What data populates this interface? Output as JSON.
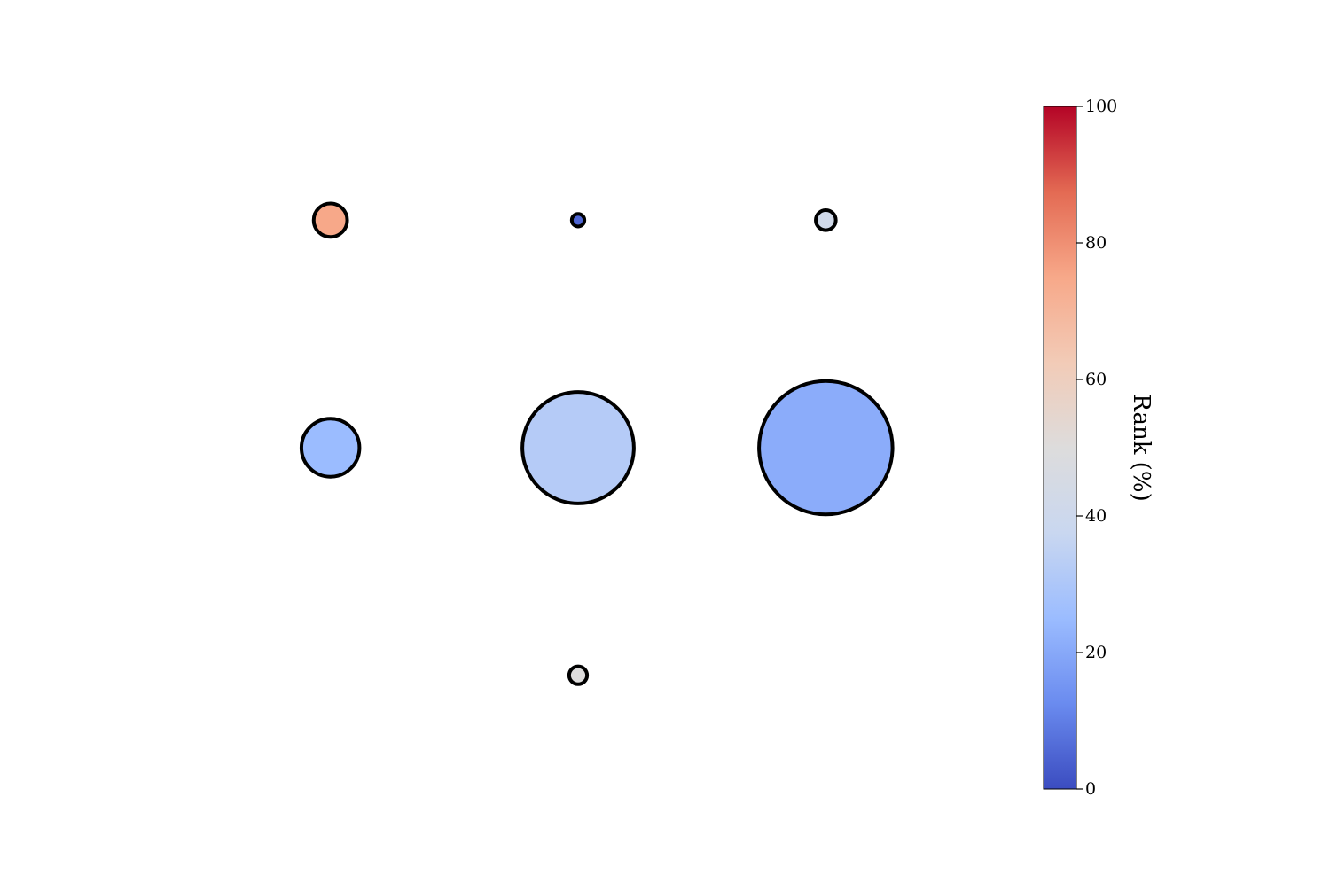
{
  "chart_data": {
    "type": "scatter",
    "title": "",
    "xlabel": "",
    "ylabel": "",
    "axes_visible": false,
    "grid": false,
    "legend": "none",
    "xlim": [
      0.5,
      3.5
    ],
    "ylim": [
      0.5,
      3.5
    ],
    "point_size_encoding": "marker area",
    "point_color_encoding": "Rank (%)",
    "points": [
      {
        "x": 1,
        "y": 3,
        "size": 14,
        "rank": 75
      },
      {
        "x": 2,
        "y": 3,
        "size": 2,
        "rank": 5
      },
      {
        "x": 3,
        "y": 3,
        "size": 5,
        "rank": 42
      },
      {
        "x": 1,
        "y": 2,
        "size": 42,
        "rank": 25
      },
      {
        "x": 2,
        "y": 2,
        "size": 155,
        "rank": 32
      },
      {
        "x": 3,
        "y": 2,
        "size": 222,
        "rank": 21
      },
      {
        "x": 2,
        "y": 1,
        "size": 4,
        "rank": 50
      }
    ],
    "colorbar": {
      "label": "Rank (%)",
      "colormap": "coolwarm",
      "range": [
        0,
        100
      ],
      "ticks": [
        0,
        20,
        40,
        60,
        80,
        100
      ],
      "tick_labels": [
        "0",
        "20",
        "40",
        "60",
        "80",
        "100"
      ]
    },
    "colors": {
      "edge": "#000000",
      "cmap_stops": [
        "#3b4cc0",
        "#6a8bef",
        "#9bbcff",
        "#c9d7f0",
        "#dddcdc",
        "#f2cbb7",
        "#f7a889",
        "#e36a53",
        "#b40426"
      ]
    }
  }
}
